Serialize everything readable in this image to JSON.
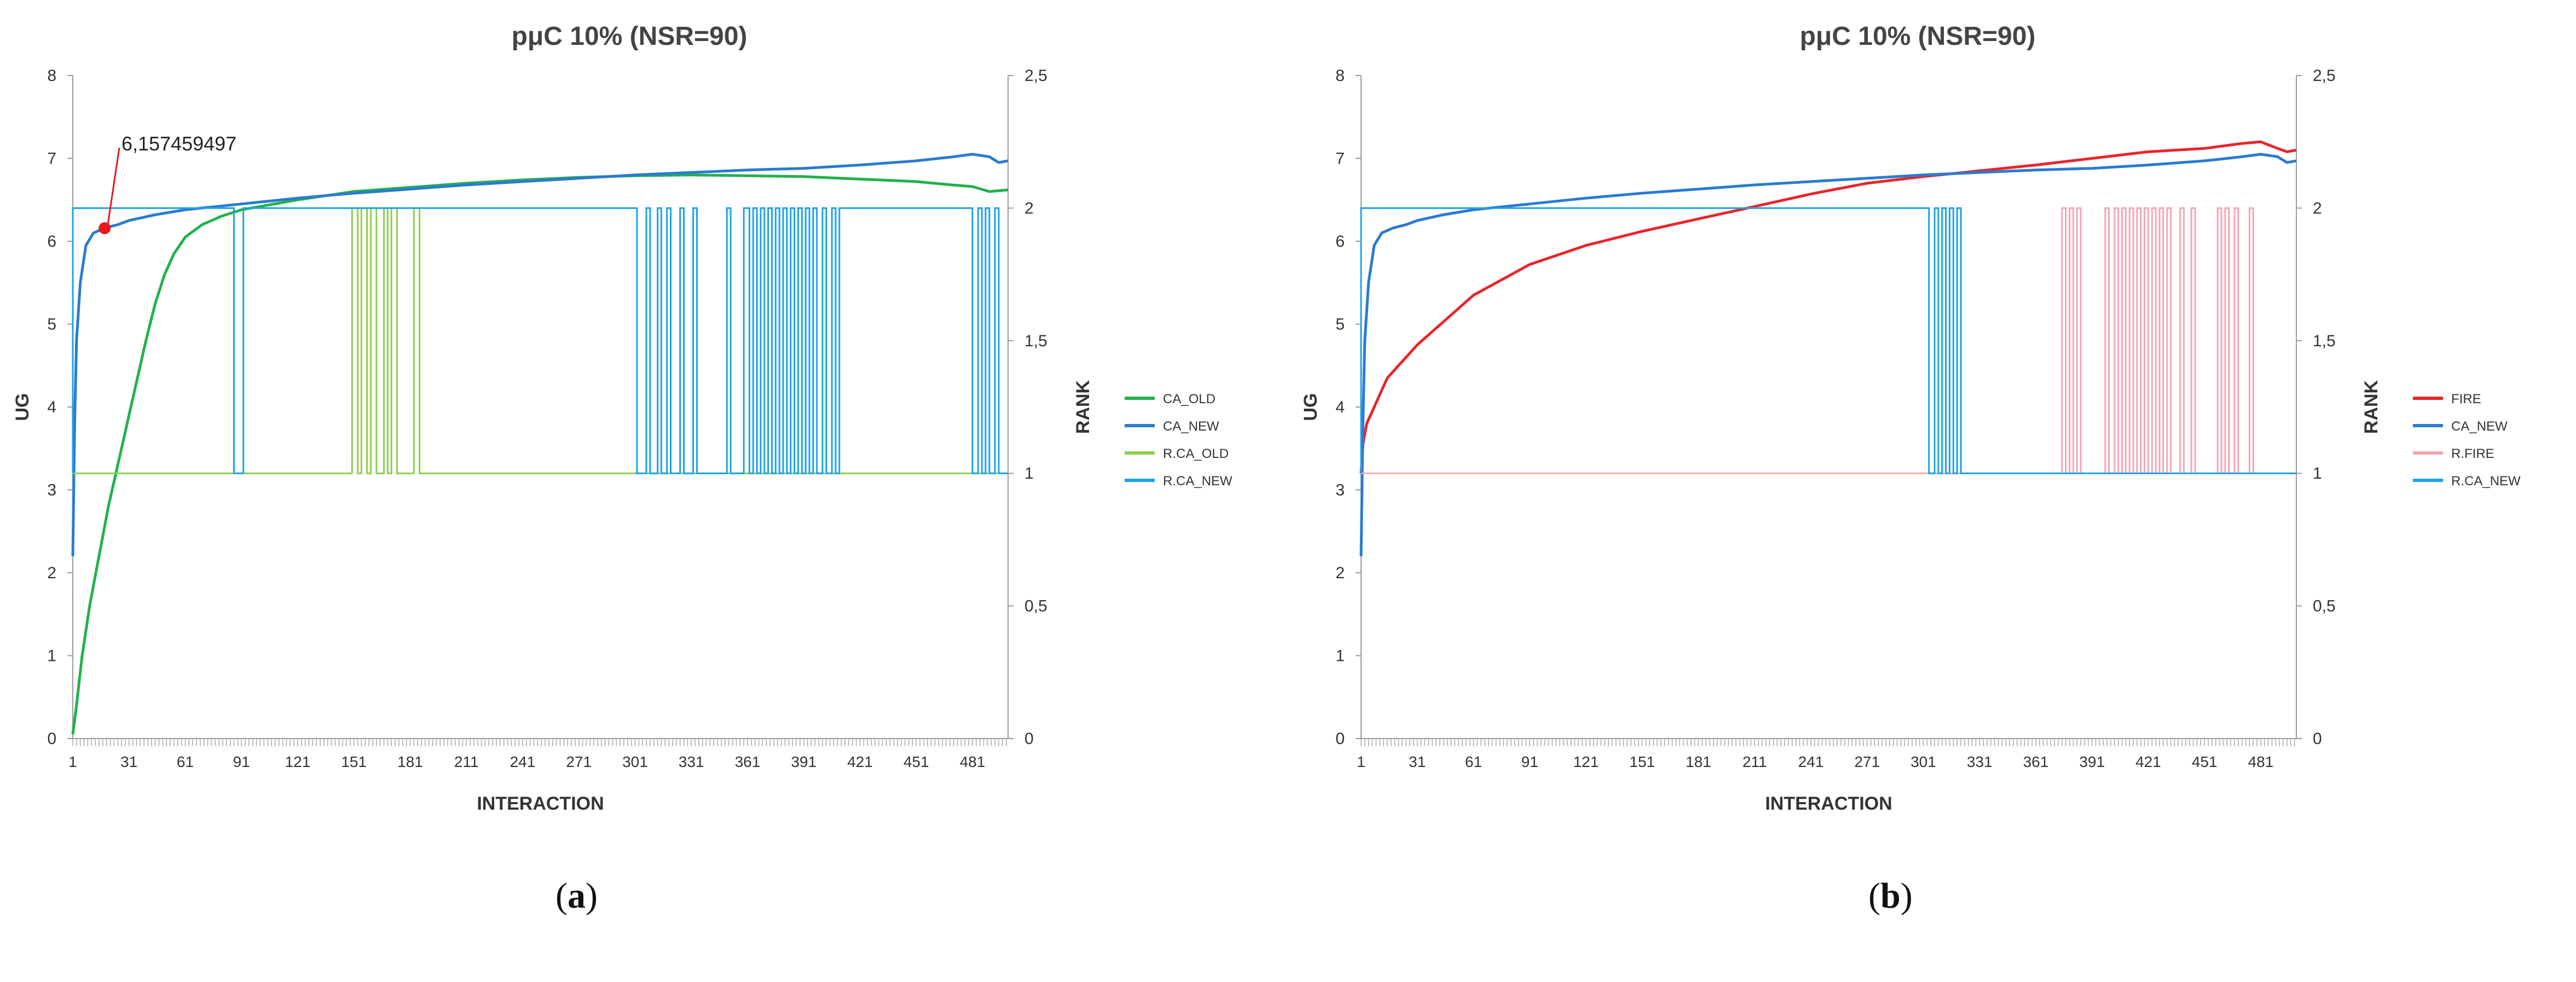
{
  "figures": [
    {
      "caption_open": "(",
      "caption_letter": "a",
      "caption_close": ")"
    },
    {
      "caption_open": "(",
      "caption_letter": "b",
      "caption_close": ")"
    }
  ],
  "chart_data": [
    {
      "type": "line",
      "title": "pμC 10% (NSR=90)",
      "xlabel": "INTERACTION",
      "ylabel": "UG",
      "y2label": "RANK",
      "xlim": [
        1,
        500
      ],
      "ylim": [
        0,
        8
      ],
      "y2lim": [
        0,
        2.5
      ],
      "x_ticks": [
        "1",
        "31",
        "61",
        "91",
        "121",
        "151",
        "181",
        "211",
        "241",
        "271",
        "301",
        "331",
        "361",
        "391",
        "421",
        "451",
        "481"
      ],
      "y_ticks": [
        "0",
        "1",
        "2",
        "3",
        "4",
        "5",
        "6",
        "7",
        "8"
      ],
      "y2_ticks": [
        "0",
        "0,5",
        "1",
        "1,5",
        "2",
        "2,5"
      ],
      "legend_position": "right",
      "annotation": {
        "text": "6,157459497",
        "x": 18,
        "y": 6.157459497,
        "color": "#e41a1c"
      },
      "series": [
        {
          "name": "CA_OLD",
          "axis": "left",
          "color": "#22b14c",
          "kind": "curve",
          "x": [
            1,
            3,
            6,
            10,
            15,
            20,
            25,
            31,
            35,
            40,
            45,
            50,
            55,
            61,
            70,
            80,
            91,
            121,
            151,
            181,
            211,
            241,
            271,
            301,
            331,
            361,
            391,
            421,
            451,
            470,
            481,
            490,
            500
          ],
          "y": [
            0.05,
            0.4,
            1.0,
            1.6,
            2.2,
            2.8,
            3.3,
            3.9,
            4.3,
            4.8,
            5.25,
            5.6,
            5.85,
            6.05,
            6.2,
            6.3,
            6.38,
            6.5,
            6.6,
            6.65,
            6.7,
            6.74,
            6.77,
            6.79,
            6.8,
            6.79,
            6.78,
            6.75,
            6.72,
            6.68,
            6.66,
            6.6,
            6.62
          ]
        },
        {
          "name": "CA_NEW",
          "axis": "left",
          "color": "#2b7bd1",
          "kind": "curve",
          "x": [
            1,
            2,
            3,
            5,
            8,
            12,
            18,
            25,
            31,
            45,
            61,
            91,
            121,
            151,
            181,
            211,
            241,
            271,
            301,
            331,
            361,
            391,
            421,
            451,
            471,
            481,
            490,
            495,
            500
          ],
          "y": [
            2.2,
            3.8,
            4.8,
            5.5,
            5.95,
            6.1,
            6.16,
            6.2,
            6.25,
            6.32,
            6.38,
            6.45,
            6.52,
            6.58,
            6.63,
            6.68,
            6.72,
            6.76,
            6.8,
            6.83,
            6.86,
            6.88,
            6.92,
            6.97,
            7.02,
            7.05,
            7.02,
            6.95,
            6.97
          ]
        },
        {
          "name": "R.CA_OLD",
          "axis": "right",
          "color": "#8ccf4a",
          "kind": "rank",
          "base": 1,
          "high": 2,
          "range": [
            1,
            500
          ],
          "segments": [
            [
              150,
              153
            ],
            [
              155,
              158
            ],
            [
              160,
              163
            ],
            [
              167,
              169
            ],
            [
              171,
              174
            ],
            [
              183,
              186
            ]
          ]
        },
        {
          "name": "R.CA_NEW",
          "axis": "right",
          "color": "#1aa3e8",
          "kind": "rank",
          "base": 1,
          "high": 2,
          "range": [
            1,
            500
          ],
          "segments": [
            [
              1,
              87
            ],
            [
              92,
              302
            ],
            [
              307,
              309
            ],
            [
              313,
              315
            ],
            [
              318,
              320
            ],
            [
              325,
              327
            ],
            [
              332,
              334
            ],
            [
              350,
              352
            ],
            [
              359,
              362
            ],
            [
              364,
              366
            ],
            [
              368,
              370
            ],
            [
              372,
              374
            ],
            [
              376,
              378
            ],
            [
              380,
              382
            ],
            [
              384,
              386
            ],
            [
              388,
              390
            ],
            [
              392,
              394
            ],
            [
              396,
              398
            ],
            [
              401,
              403
            ],
            [
              406,
              408
            ],
            [
              410,
              481
            ],
            [
              484,
              486
            ],
            [
              488,
              490
            ],
            [
              493,
              495
            ]
          ]
        }
      ]
    },
    {
      "type": "line",
      "title": "pμC 10% (NSR=90)",
      "xlabel": "INTERACTION",
      "ylabel": "UG",
      "y2label": "RANK",
      "xlim": [
        1,
        500
      ],
      "ylim": [
        0,
        8
      ],
      "y2lim": [
        0,
        2.5
      ],
      "x_ticks": [
        "1",
        "31",
        "61",
        "91",
        "121",
        "151",
        "181",
        "211",
        "241",
        "271",
        "301",
        "331",
        "361",
        "391",
        "421",
        "451",
        "481"
      ],
      "y_ticks": [
        "0",
        "1",
        "2",
        "3",
        "4",
        "5",
        "6",
        "7",
        "8"
      ],
      "y2_ticks": [
        "0",
        "0,5",
        "1",
        "1,5",
        "2",
        "2,5"
      ],
      "legend_position": "right",
      "series": [
        {
          "name": "FIRE",
          "axis": "left",
          "color": "#e8262b",
          "kind": "curve",
          "x": [
            1,
            2,
            4,
            8,
            15,
            31,
            61,
            91,
            121,
            151,
            181,
            211,
            241,
            271,
            301,
            331,
            361,
            391,
            421,
            451,
            471,
            481,
            490,
            495,
            500
          ],
          "y": [
            3.2,
            3.55,
            3.8,
            4.0,
            4.35,
            4.75,
            5.35,
            5.72,
            5.95,
            6.12,
            6.27,
            6.42,
            6.57,
            6.7,
            6.78,
            6.85,
            6.92,
            7.0,
            7.08,
            7.12,
            7.18,
            7.2,
            7.12,
            7.08,
            7.1
          ]
        },
        {
          "name": "CA_NEW",
          "axis": "left",
          "color": "#2b7bd1",
          "kind": "curve",
          "x": [
            1,
            2,
            3,
            5,
            8,
            12,
            18,
            25,
            31,
            45,
            61,
            91,
            121,
            151,
            181,
            211,
            241,
            271,
            301,
            331,
            361,
            391,
            421,
            451,
            471,
            481,
            490,
            495,
            500
          ],
          "y": [
            2.2,
            3.8,
            4.8,
            5.5,
            5.95,
            6.1,
            6.16,
            6.2,
            6.25,
            6.32,
            6.38,
            6.45,
            6.52,
            6.58,
            6.63,
            6.68,
            6.72,
            6.76,
            6.8,
            6.83,
            6.86,
            6.88,
            6.92,
            6.97,
            7.02,
            7.05,
            7.02,
            6.95,
            6.97
          ]
        },
        {
          "name": "R.FIRE",
          "axis": "right",
          "color": "#f2a7b3",
          "kind": "rank",
          "base": 1,
          "high": 2,
          "range": [
            1,
            500
          ],
          "segments": [
            [
              375,
              377
            ],
            [
              379,
              381
            ],
            [
              383,
              385
            ],
            [
              398,
              400
            ],
            [
              403,
              405
            ],
            [
              407,
              409
            ],
            [
              411,
              413
            ],
            [
              415,
              417
            ],
            [
              419,
              421
            ],
            [
              423,
              425
            ],
            [
              427,
              429
            ],
            [
              431,
              433
            ],
            [
              438,
              440
            ],
            [
              444,
              446
            ],
            [
              458,
              460
            ],
            [
              462,
              464
            ],
            [
              467,
              469
            ],
            [
              475,
              477
            ]
          ]
        },
        {
          "name": "R.CA_NEW",
          "axis": "right",
          "color": "#1aa3e8",
          "kind": "rank",
          "base": 1,
          "high": 2,
          "range": [
            1,
            500
          ],
          "segments": [
            [
              1,
              304
            ],
            [
              307,
              309
            ],
            [
              311,
              313
            ],
            [
              315,
              317
            ],
            [
              319,
              321
            ]
          ]
        }
      ]
    }
  ]
}
